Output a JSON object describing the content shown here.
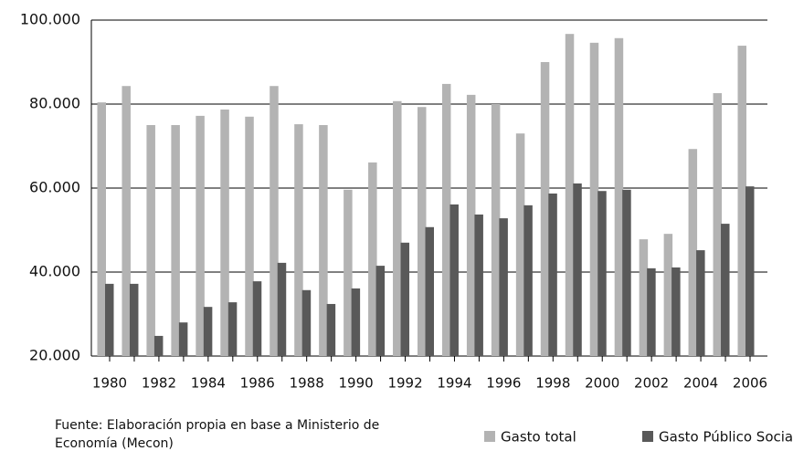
{
  "chart_data": {
    "type": "bar",
    "categories": [
      "1980",
      null,
      "1982",
      null,
      "1984",
      null,
      "1986",
      null,
      "1988",
      null,
      "1990",
      null,
      "1992",
      null,
      "1994",
      null,
      "1996",
      null,
      "1998",
      null,
      "2000",
      null,
      "2002",
      null,
      "2004",
      null,
      "2006"
    ],
    "series": [
      {
        "name": "Gasto total",
        "color": "#b3b3b3",
        "values": [
          80400,
          84300,
          75000,
          75000,
          77200,
          78700,
          77000,
          84300,
          75200,
          75000,
          59600,
          66100,
          80700,
          79300,
          84800,
          82200,
          80000,
          73000,
          90000,
          96700,
          94600,
          95700,
          47800,
          49100,
          69300,
          82600,
          93900
        ]
      },
      {
        "name": "Gasto Público Social",
        "color": "#595959",
        "values": [
          37200,
          37200,
          24800,
          28000,
          31700,
          32800,
          37800,
          42200,
          35700,
          32400,
          36100,
          41500,
          47000,
          50700,
          56100,
          53700,
          52800,
          55900,
          58700,
          61100,
          59300,
          59600,
          40900,
          41100,
          45200,
          51500,
          60400
        ]
      }
    ],
    "ylim": [
      20000,
      100000
    ],
    "yticks": [
      {
        "value": 20000,
        "label": "20.000"
      },
      {
        "value": 40000,
        "label": "40.000"
      },
      {
        "value": 60000,
        "label": "60.000"
      },
      {
        "value": 80000,
        "label": "80.000"
      },
      {
        "value": 100000,
        "label": "100.000"
      }
    ],
    "grid": true,
    "legend": "bottom-right",
    "source": [
      "Fuente: Elaboración propia en base a Ministerio de",
      "Economía (Mecon)"
    ]
  }
}
